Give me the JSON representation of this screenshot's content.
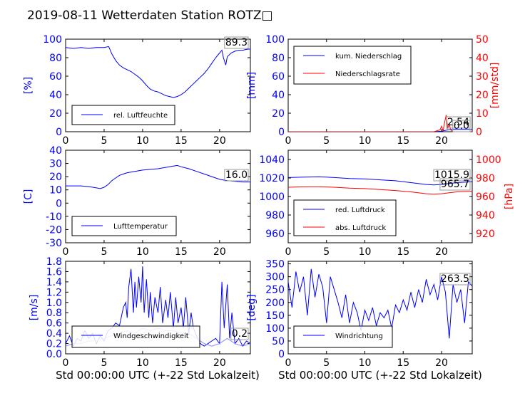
{
  "title": "2019-08-11 Wetterdaten Station ROTZ□",
  "xlabel": "Std 00:00:00 UTC (+-22 Std Lokalzeit)",
  "colors": {
    "primary": "#0000ff",
    "secondary": "#ff0000",
    "light_blue": "#8888ff"
  },
  "chart_data": [
    {
      "id": "humidity",
      "type": "line",
      "ylabel": "[%]",
      "xlim": [
        0,
        24
      ],
      "ylim": [
        0,
        100
      ],
      "xticks": [
        0,
        5,
        10,
        15,
        20
      ],
      "yticks": [
        0,
        20,
        40,
        60,
        80,
        100
      ],
      "last_value": "89.3",
      "legend_position": "lower-left",
      "series": [
        {
          "name": "rel. Luftfeuchte",
          "color": "#0000ff",
          "x": [
            0,
            1,
            2,
            3,
            4,
            5,
            5.6,
            6,
            6.5,
            7,
            7.5,
            8,
            8.5,
            9,
            9.5,
            10,
            10.5,
            11,
            11.5,
            12,
            12.5,
            13,
            13.5,
            14,
            14.5,
            15,
            15.5,
            16,
            16.5,
            17,
            17.5,
            18,
            18.5,
            19,
            19.5,
            20,
            20.3,
            20.5,
            20.8,
            21,
            21.5,
            22,
            22.5,
            23,
            23.5,
            24
          ],
          "y": [
            91,
            90,
            91,
            90,
            91,
            91,
            92,
            84,
            77,
            72,
            69,
            67,
            65,
            62,
            59,
            55,
            50,
            46,
            44,
            43,
            41,
            39,
            38,
            37,
            38,
            40,
            43,
            47,
            51,
            55,
            59,
            63,
            68,
            74,
            80,
            85,
            88,
            80,
            72,
            81,
            85,
            87,
            88,
            88,
            89,
            89.3
          ]
        }
      ]
    },
    {
      "id": "precip",
      "type": "line",
      "ylabel": "[mm]",
      "y2label": "[mm/std]",
      "xlim": [
        0,
        24
      ],
      "ylim": [
        0,
        100
      ],
      "y2lim": [
        0,
        50
      ],
      "xticks": [
        0,
        5,
        10,
        15,
        20
      ],
      "yticks": [
        0,
        20,
        40,
        60,
        80,
        100
      ],
      "y2ticks": [
        0,
        10,
        20,
        30,
        40,
        50
      ],
      "last_values": [
        "2.54",
        "0.0"
      ],
      "legend_position": "top-left",
      "series": [
        {
          "name": "kum. Niederschlag",
          "axis": "left",
          "color": "#0000ff",
          "x": [
            0,
            19,
            20,
            20.5,
            21,
            21.5,
            24
          ],
          "y": [
            0,
            0,
            0.5,
            1.5,
            2.3,
            2.54,
            2.54
          ]
        },
        {
          "name": "Niederschlagsrate",
          "axis": "right",
          "color": "#ff0000",
          "x": [
            0,
            19,
            19.8,
            20,
            20.2,
            20.4,
            20.6,
            20.8,
            21,
            21.2,
            21.5,
            24
          ],
          "y": [
            0,
            0,
            1,
            3,
            0.5,
            5,
            9,
            2,
            4,
            1,
            0,
            0
          ]
        }
      ]
    },
    {
      "id": "temperature",
      "type": "line",
      "ylabel": "[C]",
      "xlim": [
        0,
        24
      ],
      "ylim": [
        -30,
        40
      ],
      "xticks": [
        0,
        5,
        10,
        15,
        20
      ],
      "yticks": [
        -30,
        -20,
        -10,
        0,
        10,
        20,
        30,
        40
      ],
      "last_value": "16.0",
      "legend_position": "lower-left",
      "series": [
        {
          "name": "Lufttemperatur",
          "color": "#0000ff",
          "x": [
            0,
            1,
            2,
            3,
            4,
            4.5,
            5,
            5.5,
            6,
            6.5,
            7,
            7.5,
            8,
            9,
            10,
            11,
            12,
            13,
            14,
            14.5,
            15,
            16,
            17,
            18,
            19,
            20,
            21,
            22,
            23,
            24
          ],
          "y": [
            13,
            13,
            13,
            12.5,
            11.5,
            11,
            12,
            14,
            17,
            19,
            21,
            22,
            23,
            24,
            25,
            25.5,
            26,
            27,
            28,
            28.5,
            27.5,
            26,
            24,
            22,
            20,
            18,
            17,
            16.5,
            16,
            16
          ]
        }
      ]
    },
    {
      "id": "pressure",
      "type": "line",
      "ylabel": "",
      "y2label": "[hPa]",
      "xlim": [
        0,
        24
      ],
      "ylim": [
        950,
        1050
      ],
      "y2lim": [
        910,
        1010
      ],
      "xticks": [
        0,
        5,
        10,
        15,
        20
      ],
      "yticks": [
        960,
        980,
        1000,
        1020,
        1040
      ],
      "y2ticks": [
        920,
        940,
        960,
        980,
        1000
      ],
      "last_values": [
        "1015.9",
        "965.7"
      ],
      "legend_position": "lower-left",
      "series": [
        {
          "name": "red. Luftdruck",
          "axis": "left",
          "color": "#0000ff",
          "x": [
            0,
            2,
            4,
            5,
            6,
            8,
            10,
            12,
            14,
            16,
            18,
            19,
            20,
            21,
            22,
            24
          ],
          "y": [
            1020.5,
            1021,
            1021.2,
            1021,
            1020.5,
            1019.5,
            1019,
            1018,
            1017,
            1015,
            1013,
            1012.5,
            1013,
            1014,
            1015,
            1015.9
          ]
        },
        {
          "name": "abs. Luftdruck",
          "axis": "right",
          "color": "#ff0000",
          "x": [
            0,
            2,
            4,
            5,
            6,
            8,
            10,
            12,
            14,
            16,
            18,
            19,
            20,
            21,
            22,
            24
          ],
          "y": [
            970,
            970.5,
            970.5,
            970.3,
            970,
            969,
            968.5,
            967.5,
            966.5,
            965,
            963,
            962.5,
            963,
            964,
            965,
            965.7
          ]
        }
      ]
    },
    {
      "id": "windspeed",
      "type": "line",
      "ylabel": "[m/s]",
      "xlim": [
        0,
        24
      ],
      "ylim": [
        0,
        1.8
      ],
      "xticks": [
        0,
        5,
        10,
        15,
        20
      ],
      "yticks": [
        0.0,
        0.2,
        0.4,
        0.6,
        0.8,
        1.0,
        1.2,
        1.4,
        1.6,
        1.8
      ],
      "ytick_labels": [
        "0.0",
        "0.2",
        "0.4",
        "0.6",
        "0.8",
        "1.0",
        "1.2",
        "1.4",
        "1.6",
        "1.8"
      ],
      "last_value": "0.2",
      "legend_position": "lower-left",
      "series": [
        {
          "name": "Windgeschwindigkeit",
          "color": "#0000ff",
          "x": [
            0,
            0.5,
            1,
            1.5,
            2,
            2.5,
            3,
            3.5,
            4,
            4.5,
            5,
            5.5,
            6,
            6.5,
            7,
            7.5,
            7.8,
            8,
            8.2,
            8.5,
            8.8,
            9,
            9.2,
            9.5,
            9.8,
            10,
            10.2,
            10.5,
            10.8,
            11,
            11.3,
            11.6,
            12,
            12.3,
            12.6,
            13,
            13.3,
            13.6,
            14,
            14.3,
            14.6,
            15,
            15.3,
            15.6,
            16,
            16.3,
            16.6,
            17,
            17.5,
            18,
            18.5,
            19,
            19.5,
            20,
            20.3,
            20.6,
            21,
            21.3,
            21.6,
            22,
            22.5,
            23,
            23.5,
            24
          ],
          "y": [
            0.2,
            0.35,
            0.15,
            0.3,
            0.25,
            0.45,
            0.3,
            0.4,
            0.2,
            0.35,
            0.25,
            0.45,
            0.5,
            0.6,
            0.55,
            0.9,
            1.0,
            0.7,
            1.3,
            1.65,
            0.8,
            1.4,
            0.9,
            1.5,
            1.0,
            1.7,
            0.8,
            1.45,
            0.7,
            1.2,
            0.6,
            1.1,
            0.8,
            1.3,
            0.6,
            1.05,
            0.7,
            1.2,
            0.5,
            1.1,
            0.6,
            0.9,
            0.5,
            1.1,
            0.4,
            0.8,
            0.5,
            0.35,
            0.2,
            0.15,
            0.2,
            0.25,
            0.3,
            0.2,
            1.4,
            0.5,
            1.35,
            0.3,
            0.8,
            0.2,
            0.3,
            0.15,
            0.25,
            0.2
          ]
        },
        {
          "name": "",
          "color": "#8888ff",
          "x": [
            0,
            1,
            2,
            3,
            4,
            5,
            6,
            7,
            8,
            9,
            10,
            11,
            12,
            13,
            14,
            15,
            16,
            17,
            18,
            19,
            20,
            21,
            22,
            23,
            24
          ],
          "y": [
            0.15,
            0.2,
            0.2,
            0.25,
            0.25,
            0.3,
            0.35,
            0.4,
            0.45,
            0.4,
            0.5,
            0.45,
            0.5,
            0.45,
            0.45,
            0.4,
            0.4,
            0.3,
            0.2,
            0.15,
            0.2,
            0.3,
            0.2,
            0.15,
            0.2
          ]
        }
      ]
    },
    {
      "id": "winddir",
      "type": "line",
      "ylabel": "[deg]",
      "xlim": [
        0,
        24
      ],
      "ylim": [
        0,
        360
      ],
      "xticks": [
        0,
        5,
        10,
        15,
        20
      ],
      "yticks": [
        0,
        50,
        100,
        150,
        200,
        250,
        300,
        350
      ],
      "last_value": "263.5",
      "legend_position": "lower-left",
      "series": [
        {
          "name": "Windrichtung",
          "color": "#0000ff",
          "x": [
            0,
            0.5,
            1,
            1.5,
            2,
            2.5,
            3,
            3.5,
            4,
            4.5,
            5,
            5.5,
            6,
            6.5,
            7,
            7.5,
            8,
            8.5,
            9,
            9.5,
            10,
            10.5,
            11,
            11.5,
            12,
            12.5,
            13,
            13.5,
            14,
            14.5,
            15,
            15.5,
            16,
            16.5,
            17,
            17.5,
            18,
            18.5,
            19,
            19.5,
            20,
            20.5,
            21,
            21.5,
            22,
            22.5,
            23,
            23.5,
            24
          ],
          "y": [
            280,
            180,
            320,
            240,
            300,
            150,
            330,
            220,
            310,
            260,
            120,
            300,
            250,
            200,
            140,
            230,
            120,
            200,
            160,
            90,
            170,
            130,
            180,
            110,
            160,
            140,
            170,
            100,
            190,
            160,
            210,
            170,
            240,
            180,
            250,
            200,
            290,
            230,
            270,
            210,
            300,
            240,
            60,
            270,
            200,
            250,
            120,
            280,
            263.5
          ]
        }
      ]
    }
  ]
}
